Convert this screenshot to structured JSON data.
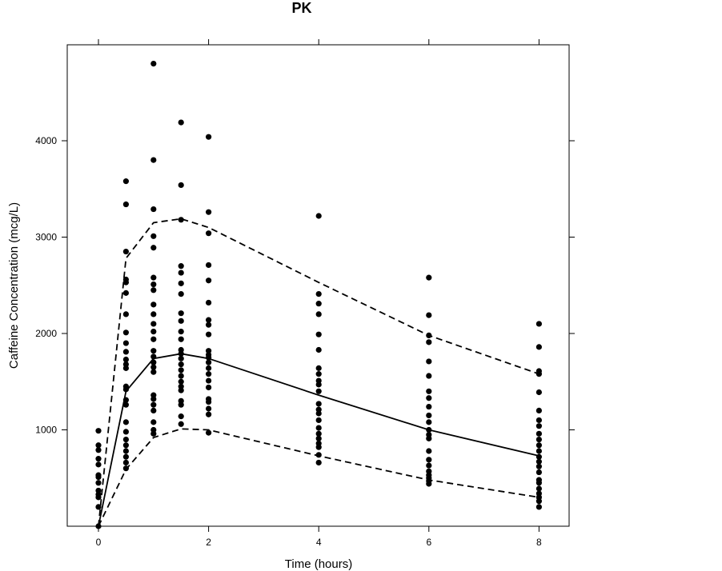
{
  "chart_data": {
    "type": "scatter",
    "title": "PK",
    "xlabel": "Time (hours)",
    "ylabel": "Caffeine Concentration (mcg/L)",
    "xlim": [
      -0.6,
      8.6
    ],
    "ylim": [
      0,
      5000
    ],
    "xticks": [
      0,
      2,
      4,
      6,
      8
    ],
    "yticks": [
      1000,
      2000,
      3000,
      4000
    ],
    "grid": false,
    "colors": {
      "points": "#000000",
      "lines": "#000000"
    },
    "points": [
      {
        "x": 0,
        "y": 0
      },
      {
        "x": 0,
        "y": 200
      },
      {
        "x": 0,
        "y": 300
      },
      {
        "x": 0,
        "y": 330
      },
      {
        "x": 0,
        "y": 370
      },
      {
        "x": 0,
        "y": 450
      },
      {
        "x": 0,
        "y": 510
      },
      {
        "x": 0,
        "y": 530
      },
      {
        "x": 0,
        "y": 640
      },
      {
        "x": 0,
        "y": 700
      },
      {
        "x": 0,
        "y": 790
      },
      {
        "x": 0,
        "y": 840
      },
      {
        "x": 0,
        "y": 990
      },
      {
        "x": 0.5,
        "y": 600
      },
      {
        "x": 0.5,
        "y": 660
      },
      {
        "x": 0.5,
        "y": 720
      },
      {
        "x": 0.5,
        "y": 780
      },
      {
        "x": 0.5,
        "y": 840
      },
      {
        "x": 0.5,
        "y": 900
      },
      {
        "x": 0.5,
        "y": 980
      },
      {
        "x": 0.5,
        "y": 1080
      },
      {
        "x": 0.5,
        "y": 1260
      },
      {
        "x": 0.5,
        "y": 1310
      },
      {
        "x": 0.5,
        "y": 1420
      },
      {
        "x": 0.5,
        "y": 1450
      },
      {
        "x": 0.5,
        "y": 1640
      },
      {
        "x": 0.5,
        "y": 1680
      },
      {
        "x": 0.5,
        "y": 1730
      },
      {
        "x": 0.5,
        "y": 1810
      },
      {
        "x": 0.5,
        "y": 1900
      },
      {
        "x": 0.5,
        "y": 2010
      },
      {
        "x": 0.5,
        "y": 2200
      },
      {
        "x": 0.5,
        "y": 2420
      },
      {
        "x": 0.5,
        "y": 2530
      },
      {
        "x": 0.5,
        "y": 2560
      },
      {
        "x": 0.5,
        "y": 2850
      },
      {
        "x": 0.5,
        "y": 3340
      },
      {
        "x": 0.5,
        "y": 3580
      },
      {
        "x": 1,
        "y": 960
      },
      {
        "x": 1,
        "y": 1000
      },
      {
        "x": 1,
        "y": 1080
      },
      {
        "x": 1,
        "y": 1200
      },
      {
        "x": 1,
        "y": 1260
      },
      {
        "x": 1,
        "y": 1320
      },
      {
        "x": 1,
        "y": 1360
      },
      {
        "x": 1,
        "y": 1600
      },
      {
        "x": 1,
        "y": 1650
      },
      {
        "x": 1,
        "y": 1700
      },
      {
        "x": 1,
        "y": 1760
      },
      {
        "x": 1,
        "y": 1820
      },
      {
        "x": 1,
        "y": 1940
      },
      {
        "x": 1,
        "y": 2020
      },
      {
        "x": 1,
        "y": 2100
      },
      {
        "x": 1,
        "y": 2200
      },
      {
        "x": 1,
        "y": 2300
      },
      {
        "x": 1,
        "y": 2450
      },
      {
        "x": 1,
        "y": 2510
      },
      {
        "x": 1,
        "y": 2580
      },
      {
        "x": 1,
        "y": 2890
      },
      {
        "x": 1,
        "y": 3010
      },
      {
        "x": 1,
        "y": 3290
      },
      {
        "x": 1,
        "y": 3800
      },
      {
        "x": 1,
        "y": 4800
      },
      {
        "x": 1.5,
        "y": 1060
      },
      {
        "x": 1.5,
        "y": 1140
      },
      {
        "x": 1.5,
        "y": 1260
      },
      {
        "x": 1.5,
        "y": 1300
      },
      {
        "x": 1.5,
        "y": 1410
      },
      {
        "x": 1.5,
        "y": 1450
      },
      {
        "x": 1.5,
        "y": 1500
      },
      {
        "x": 1.5,
        "y": 1560
      },
      {
        "x": 1.5,
        "y": 1620
      },
      {
        "x": 1.5,
        "y": 1680
      },
      {
        "x": 1.5,
        "y": 1740
      },
      {
        "x": 1.5,
        "y": 1790
      },
      {
        "x": 1.5,
        "y": 1830
      },
      {
        "x": 1.5,
        "y": 1940
      },
      {
        "x": 1.5,
        "y": 2020
      },
      {
        "x": 1.5,
        "y": 2130
      },
      {
        "x": 1.5,
        "y": 2210
      },
      {
        "x": 1.5,
        "y": 2410
      },
      {
        "x": 1.5,
        "y": 2520
      },
      {
        "x": 1.5,
        "y": 2630
      },
      {
        "x": 1.5,
        "y": 2700
      },
      {
        "x": 1.5,
        "y": 3180
      },
      {
        "x": 1.5,
        "y": 3540
      },
      {
        "x": 1.5,
        "y": 4190
      },
      {
        "x": 2,
        "y": 970
      },
      {
        "x": 2,
        "y": 1160
      },
      {
        "x": 2,
        "y": 1220
      },
      {
        "x": 2,
        "y": 1290
      },
      {
        "x": 2,
        "y": 1320
      },
      {
        "x": 2,
        "y": 1440
      },
      {
        "x": 2,
        "y": 1510
      },
      {
        "x": 2,
        "y": 1580
      },
      {
        "x": 2,
        "y": 1640
      },
      {
        "x": 2,
        "y": 1700
      },
      {
        "x": 2,
        "y": 1750
      },
      {
        "x": 2,
        "y": 1780
      },
      {
        "x": 2,
        "y": 1820
      },
      {
        "x": 2,
        "y": 1990
      },
      {
        "x": 2,
        "y": 2090
      },
      {
        "x": 2,
        "y": 2140
      },
      {
        "x": 2,
        "y": 2320
      },
      {
        "x": 2,
        "y": 2550
      },
      {
        "x": 2,
        "y": 2710
      },
      {
        "x": 2,
        "y": 3040
      },
      {
        "x": 2,
        "y": 3260
      },
      {
        "x": 2,
        "y": 4040
      },
      {
        "x": 4,
        "y": 660
      },
      {
        "x": 4,
        "y": 740
      },
      {
        "x": 4,
        "y": 820
      },
      {
        "x": 4,
        "y": 860
      },
      {
        "x": 4,
        "y": 910
      },
      {
        "x": 4,
        "y": 960
      },
      {
        "x": 4,
        "y": 1020
      },
      {
        "x": 4,
        "y": 1100
      },
      {
        "x": 4,
        "y": 1170
      },
      {
        "x": 4,
        "y": 1210
      },
      {
        "x": 4,
        "y": 1270
      },
      {
        "x": 4,
        "y": 1400
      },
      {
        "x": 4,
        "y": 1470
      },
      {
        "x": 4,
        "y": 1510
      },
      {
        "x": 4,
        "y": 1580
      },
      {
        "x": 4,
        "y": 1640
      },
      {
        "x": 4,
        "y": 1830
      },
      {
        "x": 4,
        "y": 1990
      },
      {
        "x": 4,
        "y": 2200
      },
      {
        "x": 4,
        "y": 2310
      },
      {
        "x": 4,
        "y": 2410
      },
      {
        "x": 4,
        "y": 3220
      },
      {
        "x": 6,
        "y": 440
      },
      {
        "x": 6,
        "y": 470
      },
      {
        "x": 6,
        "y": 500
      },
      {
        "x": 6,
        "y": 530
      },
      {
        "x": 6,
        "y": 570
      },
      {
        "x": 6,
        "y": 630
      },
      {
        "x": 6,
        "y": 690
      },
      {
        "x": 6,
        "y": 780
      },
      {
        "x": 6,
        "y": 910
      },
      {
        "x": 6,
        "y": 950
      },
      {
        "x": 6,
        "y": 1000
      },
      {
        "x": 6,
        "y": 1080
      },
      {
        "x": 6,
        "y": 1150
      },
      {
        "x": 6,
        "y": 1240
      },
      {
        "x": 6,
        "y": 1330
      },
      {
        "x": 6,
        "y": 1400
      },
      {
        "x": 6,
        "y": 1560
      },
      {
        "x": 6,
        "y": 1710
      },
      {
        "x": 6,
        "y": 1910
      },
      {
        "x": 6,
        "y": 1980
      },
      {
        "x": 6,
        "y": 2190
      },
      {
        "x": 6,
        "y": 2580
      },
      {
        "x": 8,
        "y": 200
      },
      {
        "x": 8,
        "y": 260
      },
      {
        "x": 8,
        "y": 300
      },
      {
        "x": 8,
        "y": 340
      },
      {
        "x": 8,
        "y": 390
      },
      {
        "x": 8,
        "y": 450
      },
      {
        "x": 8,
        "y": 480
      },
      {
        "x": 8,
        "y": 560
      },
      {
        "x": 8,
        "y": 620
      },
      {
        "x": 8,
        "y": 670
      },
      {
        "x": 8,
        "y": 720
      },
      {
        "x": 8,
        "y": 780
      },
      {
        "x": 8,
        "y": 840
      },
      {
        "x": 8,
        "y": 900
      },
      {
        "x": 8,
        "y": 960
      },
      {
        "x": 8,
        "y": 1040
      },
      {
        "x": 8,
        "y": 1100
      },
      {
        "x": 8,
        "y": 1200
      },
      {
        "x": 8,
        "y": 1390
      },
      {
        "x": 8,
        "y": 1580
      },
      {
        "x": 8,
        "y": 1610
      },
      {
        "x": 8,
        "y": 1860
      },
      {
        "x": 8,
        "y": 2100
      }
    ],
    "lines": [
      {
        "style": "solid",
        "x": [
          0,
          0.5,
          1,
          1.5,
          2,
          4,
          6,
          8
        ],
        "y": [
          0,
          1400,
          1740,
          1790,
          1740,
          1360,
          1000,
          730
        ]
      },
      {
        "style": "dashed",
        "x": [
          0,
          0.5,
          1,
          1.5,
          2,
          4,
          6,
          8
        ],
        "y": [
          0,
          2780,
          3150,
          3190,
          3100,
          2530,
          1980,
          1580
        ]
      },
      {
        "style": "dashed",
        "x": [
          0,
          0.5,
          1,
          1.5,
          2,
          4,
          6,
          8
        ],
        "y": [
          0,
          590,
          920,
          1010,
          1000,
          730,
          480,
          300
        ]
      }
    ]
  }
}
